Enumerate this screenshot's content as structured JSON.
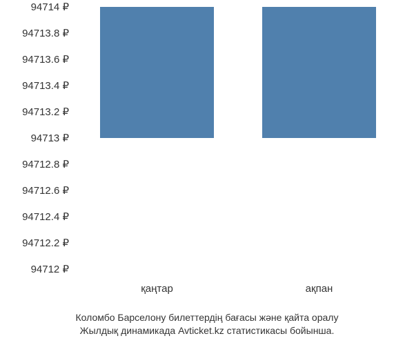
{
  "chart": {
    "type": "bar",
    "categories": [
      "қаңтар",
      "ақпан"
    ],
    "values": [
      94714,
      94714
    ],
    "bar_color": "#5080ad",
    "background_color": "#ffffff",
    "ylim": [
      94712,
      94714
    ],
    "ytick_step": 0.2,
    "yticks": [
      {
        "value": 94714,
        "label": "94714 ₽"
      },
      {
        "value": 94713.8,
        "label": "94713.8 ₽"
      },
      {
        "value": 94713.6,
        "label": "94713.6 ₽"
      },
      {
        "value": 94713.4,
        "label": "94713.4 ₽"
      },
      {
        "value": 94713.2,
        "label": "94713.2 ₽"
      },
      {
        "value": 94713,
        "label": "94713 ₽"
      },
      {
        "value": 94712.8,
        "label": "94712.8 ₽"
      },
      {
        "value": 94712.6,
        "label": "94712.6 ₽"
      },
      {
        "value": 94712.4,
        "label": "94712.4 ₽"
      },
      {
        "value": 94712.2,
        "label": "94712.2 ₽"
      },
      {
        "value": 94712,
        "label": "94712 ₽"
      }
    ],
    "bar_baseline": 94713,
    "label_fontsize": 15,
    "caption_fontsize": 14,
    "text_color": "#333333",
    "bar_width_ratio": 0.7
  },
  "caption": {
    "line1": "Коломбо Барселону билеттердің бағасы және қайта оралу",
    "line2": "Жылдық динамикада Avticket.kz статистикасы бойынша."
  }
}
